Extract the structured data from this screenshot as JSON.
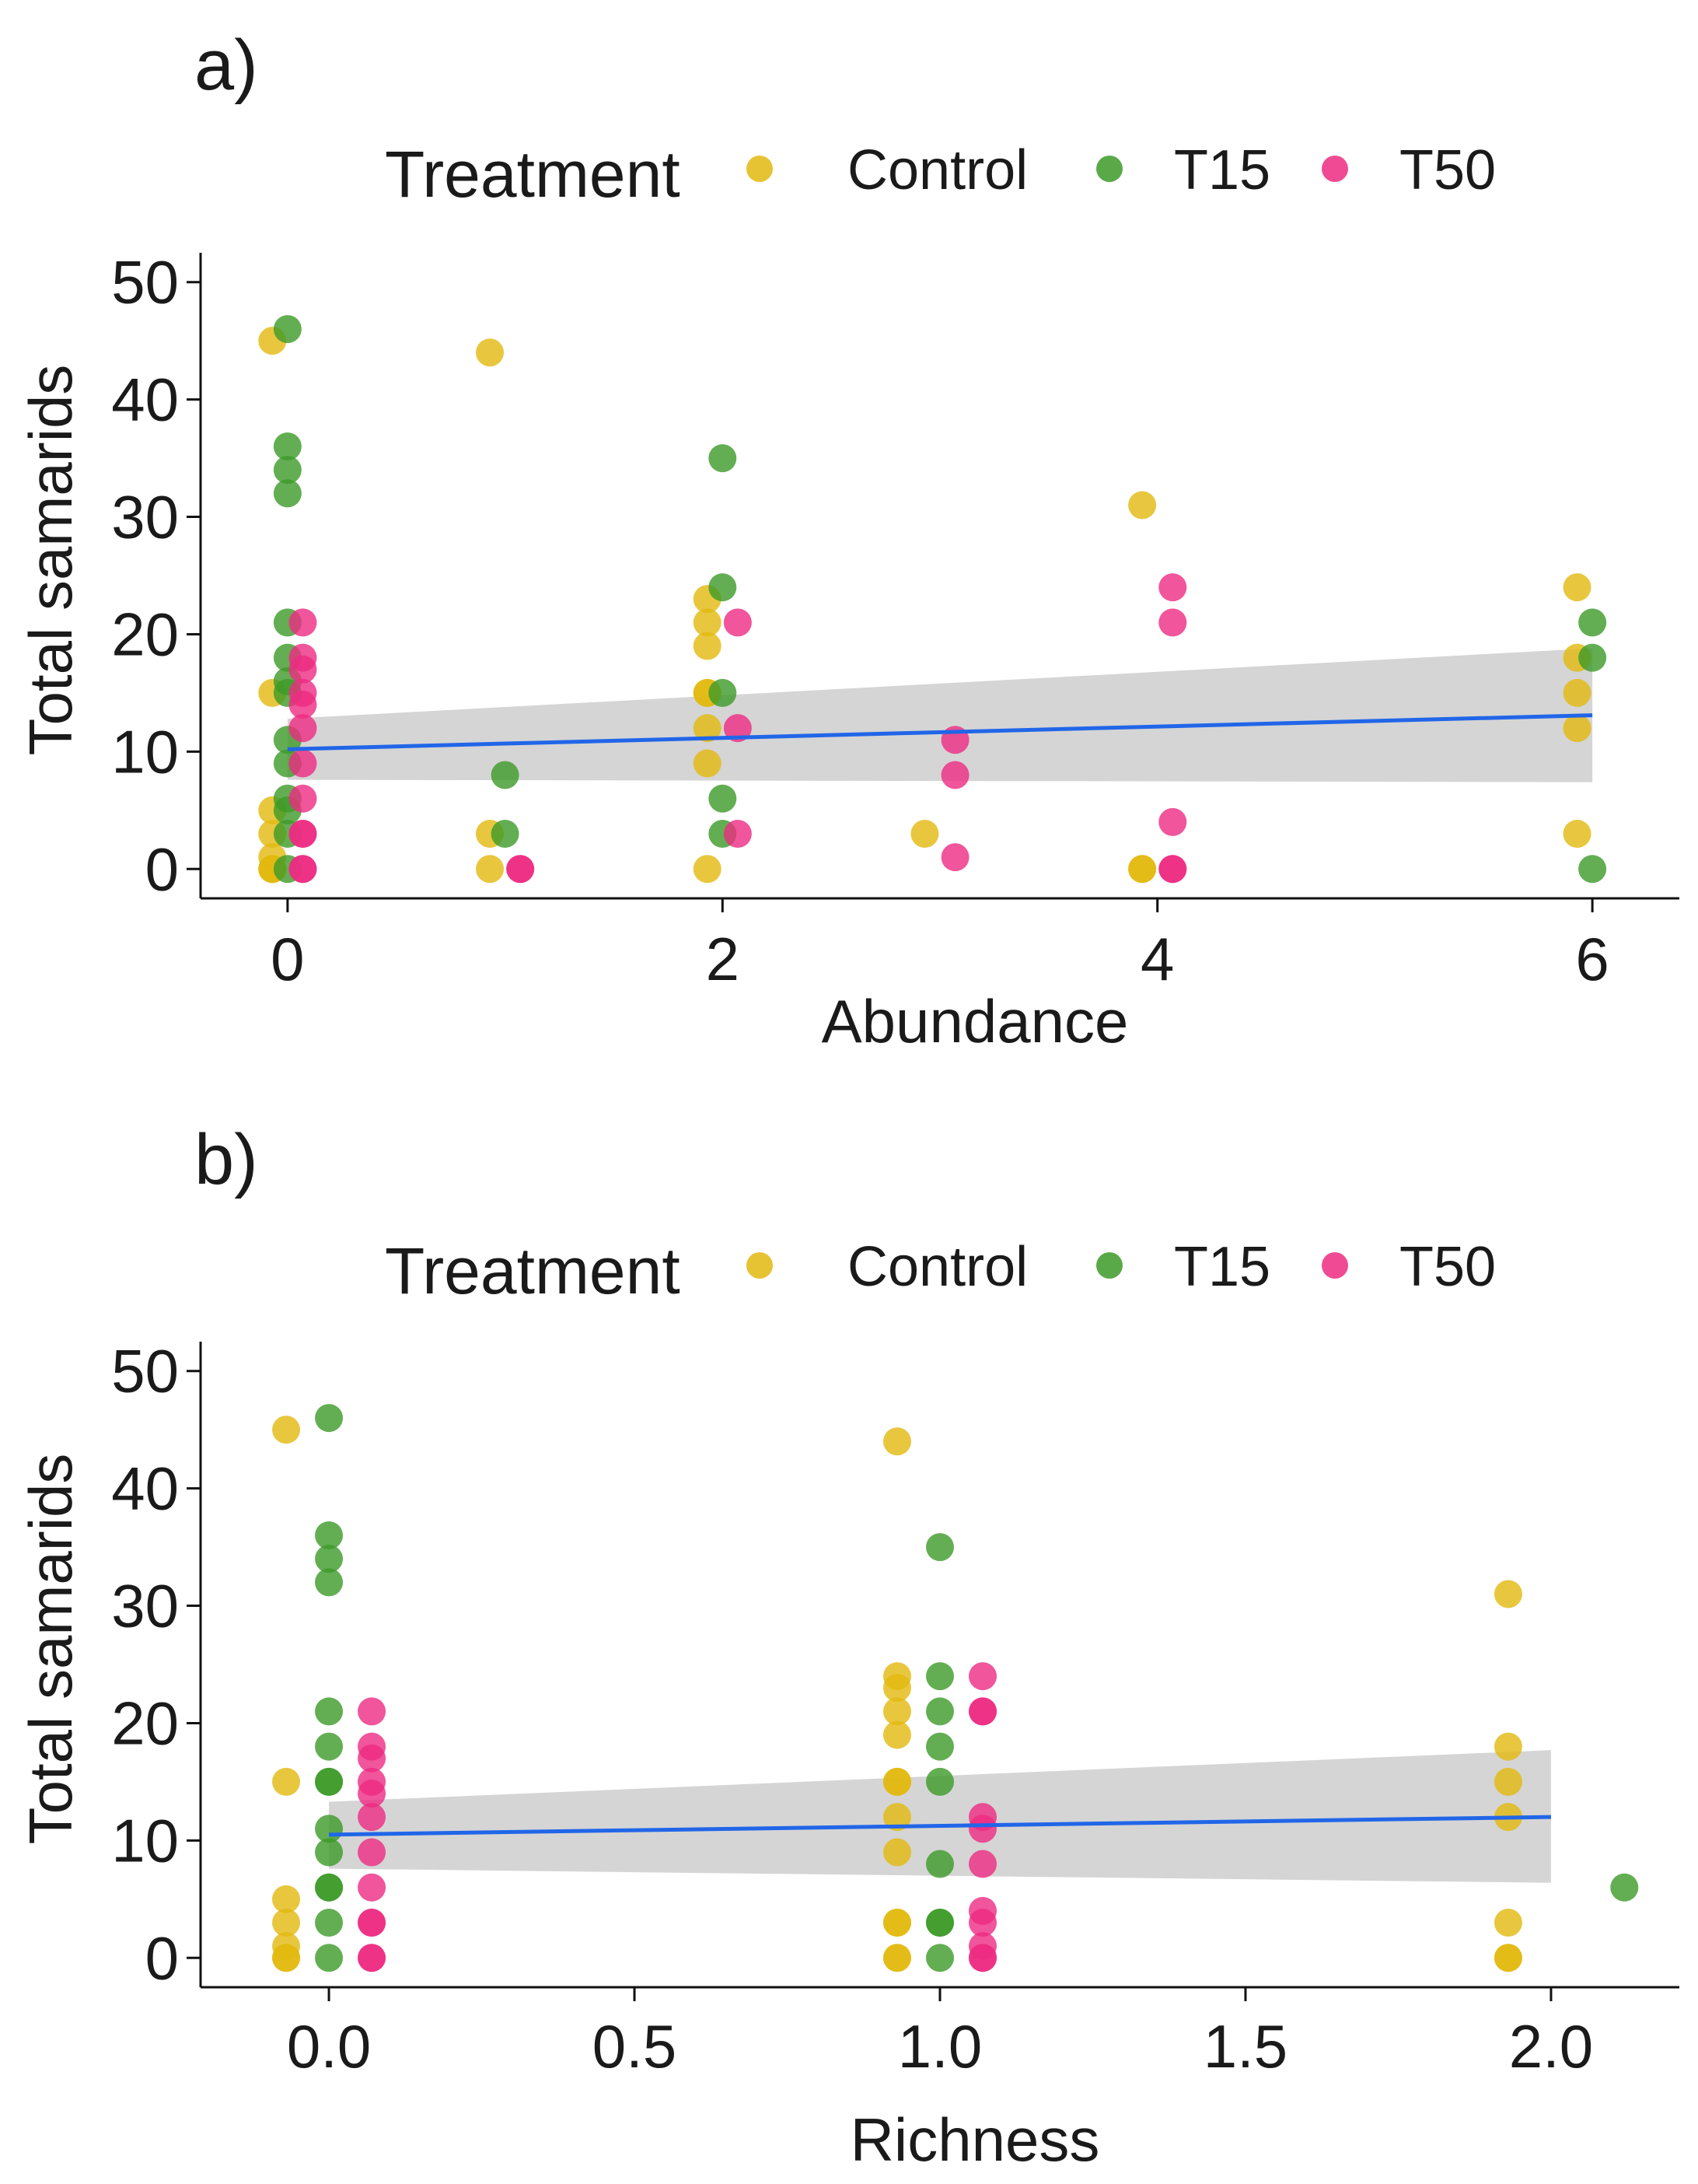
{
  "colors": {
    "Control": "#E2B90F",
    "T15": "#3C9A28",
    "T50": "#EE2A82",
    "fit_line": "#2166E8",
    "ribbon": "#BEBEBE"
  },
  "chart_data": [
    {
      "panel_label": "a)",
      "type": "scatter",
      "legend": {
        "title": "Treatment",
        "entries": [
          "Control",
          "T15",
          "T50"
        ]
      },
      "xlabel": "Abundance",
      "ylabel": "Total samarids",
      "xlim": [
        -0.4,
        6.4
      ],
      "ylim": [
        -2.5,
        52.5
      ],
      "xticks": [
        0,
        2,
        4,
        6
      ],
      "yticks": [
        0,
        10,
        20,
        30,
        40,
        50
      ],
      "jitter_groups": {
        "Control": -0.07,
        "T15": 0.0,
        "T50": 0.07
      },
      "series": [
        {
          "name": "Control",
          "points": [
            [
              0,
              45
            ],
            [
              0,
              15
            ],
            [
              0,
              5
            ],
            [
              0,
              3
            ],
            [
              0,
              1
            ],
            [
              0,
              0
            ],
            [
              0,
              0
            ],
            [
              0,
              0
            ],
            [
              1,
              44
            ],
            [
              1,
              3
            ],
            [
              1,
              0
            ],
            [
              2,
              23
            ],
            [
              2,
              21
            ],
            [
              2,
              19
            ],
            [
              2,
              15
            ],
            [
              2,
              15
            ],
            [
              2,
              12
            ],
            [
              2,
              9
            ],
            [
              2,
              0
            ],
            [
              3,
              3
            ],
            [
              4,
              31
            ],
            [
              4,
              0
            ],
            [
              4,
              0
            ],
            [
              6,
              24
            ],
            [
              6,
              18
            ],
            [
              6,
              15
            ],
            [
              6,
              12
            ],
            [
              6,
              3
            ]
          ]
        },
        {
          "name": "T15",
          "points": [
            [
              0,
              46
            ],
            [
              0,
              36
            ],
            [
              0,
              34
            ],
            [
              0,
              32
            ],
            [
              0,
              21
            ],
            [
              0,
              18
            ],
            [
              0,
              16
            ],
            [
              0,
              15
            ],
            [
              0,
              11
            ],
            [
              0,
              9
            ],
            [
              0,
              6
            ],
            [
              0,
              5
            ],
            [
              0,
              3
            ],
            [
              0,
              0
            ],
            [
              1,
              8
            ],
            [
              1,
              3
            ],
            [
              2,
              35
            ],
            [
              2,
              24
            ],
            [
              2,
              15
            ],
            [
              2,
              6
            ],
            [
              2,
              3
            ],
            [
              6,
              21
            ],
            [
              6,
              18
            ],
            [
              6,
              0
            ]
          ]
        },
        {
          "name": "T50",
          "points": [
            [
              0,
              21
            ],
            [
              0,
              18
            ],
            [
              0,
              17
            ],
            [
              0,
              15
            ],
            [
              0,
              14
            ],
            [
              0,
              12
            ],
            [
              0,
              9
            ],
            [
              0,
              6
            ],
            [
              0,
              3
            ],
            [
              0,
              3
            ],
            [
              0,
              0
            ],
            [
              0,
              0
            ],
            [
              1,
              0
            ],
            [
              1,
              0
            ],
            [
              2,
              21
            ],
            [
              2,
              12
            ],
            [
              2,
              3
            ],
            [
              3,
              11
            ],
            [
              3,
              8
            ],
            [
              3,
              1
            ],
            [
              4,
              24
            ],
            [
              4,
              21
            ],
            [
              4,
              4
            ],
            [
              4,
              0
            ],
            [
              4,
              0
            ]
          ]
        }
      ],
      "fit": {
        "x": [
          0,
          6
        ],
        "y": [
          10.2,
          13.1
        ],
        "lower": [
          7.6,
          7.4
        ],
        "upper": [
          12.8,
          18.8
        ]
      }
    },
    {
      "panel_label": "b)",
      "type": "scatter",
      "legend": {
        "title": "Treatment",
        "entries": [
          "Control",
          "T15",
          "T50"
        ]
      },
      "xlabel": "Richness",
      "ylabel": "Total samarids",
      "xlim": [
        -0.21,
        2.21
      ],
      "ylim": [
        -2.5,
        52.5
      ],
      "xticks": [
        0.0,
        0.5,
        1.0,
        1.5,
        2.0
      ],
      "xtick_labels": [
        "0.0",
        "0.5",
        "1.0",
        "1.5",
        "2.0"
      ],
      "yticks": [
        0,
        10,
        20,
        30,
        40,
        50
      ],
      "jitter_groups": {
        "Control": -0.07,
        "T15": 0.0,
        "T50": 0.07
      },
      "series": [
        {
          "name": "Control",
          "points": [
            [
              0,
              45
            ],
            [
              0,
              15
            ],
            [
              0,
              5
            ],
            [
              0,
              3
            ],
            [
              0,
              1
            ],
            [
              0,
              0
            ],
            [
              0,
              0
            ],
            [
              1,
              44
            ],
            [
              1,
              24
            ],
            [
              1,
              23
            ],
            [
              1,
              21
            ],
            [
              1,
              19
            ],
            [
              1,
              15
            ],
            [
              1,
              15
            ],
            [
              1,
              12
            ],
            [
              1,
              9
            ],
            [
              1,
              3
            ],
            [
              1,
              3
            ],
            [
              1,
              0
            ],
            [
              1,
              0
            ],
            [
              2,
              31
            ],
            [
              2,
              18
            ],
            [
              2,
              15
            ],
            [
              2,
              12
            ],
            [
              2,
              3
            ],
            [
              2,
              0
            ],
            [
              2,
              0
            ]
          ]
        },
        {
          "name": "T15",
          "points": [
            [
              0,
              46
            ],
            [
              0,
              36
            ],
            [
              0,
              34
            ],
            [
              0,
              32
            ],
            [
              0,
              21
            ],
            [
              0,
              18
            ],
            [
              0,
              15
            ],
            [
              0,
              15
            ],
            [
              0,
              11
            ],
            [
              0,
              9
            ],
            [
              0,
              6
            ],
            [
              0,
              6
            ],
            [
              0,
              3
            ],
            [
              0,
              0
            ],
            [
              1,
              35
            ],
            [
              1,
              24
            ],
            [
              1,
              21
            ],
            [
              1,
              18
            ],
            [
              1,
              15
            ],
            [
              1,
              8
            ],
            [
              1,
              3
            ],
            [
              1,
              3
            ],
            [
              1,
              0
            ],
            [
              2.12,
              6
            ]
          ]
        },
        {
          "name": "T50",
          "points": [
            [
              0,
              21
            ],
            [
              0,
              18
            ],
            [
              0,
              17
            ],
            [
              0,
              15
            ],
            [
              0,
              14
            ],
            [
              0,
              12
            ],
            [
              0,
              9
            ],
            [
              0,
              6
            ],
            [
              0,
              3
            ],
            [
              0,
              3
            ],
            [
              0,
              0
            ],
            [
              0,
              0
            ],
            [
              1,
              24
            ],
            [
              1,
              21
            ],
            [
              1,
              21
            ],
            [
              1,
              12
            ],
            [
              1,
              11
            ],
            [
              1,
              8
            ],
            [
              1,
              4
            ],
            [
              1,
              3
            ],
            [
              1,
              1
            ],
            [
              1,
              0
            ],
            [
              1,
              0
            ]
          ]
        }
      ],
      "fit": {
        "x": [
          0,
          2
        ],
        "y": [
          10.5,
          12.0
        ],
        "lower": [
          7.6,
          6.4
        ],
        "upper": [
          13.3,
          17.7
        ]
      }
    }
  ]
}
